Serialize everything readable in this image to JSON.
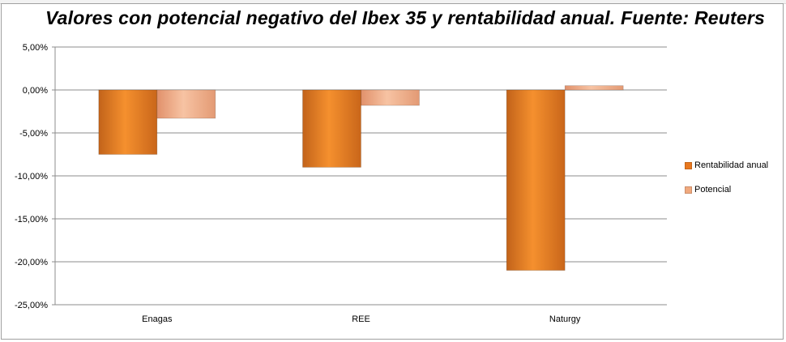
{
  "chart_data": {
    "type": "bar",
    "title": "Valores con potencial negativo del Ibex 35 y rentabilidad anual. Fuente: Reuters",
    "categories": [
      "Enagas",
      "REE",
      "Naturgy"
    ],
    "series": [
      {
        "name": "Rentabilidad anual",
        "values": [
          -7.5,
          -9.0,
          -21.0
        ],
        "color": "#e8781f"
      },
      {
        "name": "Potencial",
        "values": [
          -3.3,
          -1.8,
          0.5
        ],
        "color": "#f0a97e"
      }
    ],
    "ylim": [
      -25,
      5
    ],
    "yticks": [
      5,
      0,
      -5,
      -10,
      -15,
      -20,
      -25
    ],
    "ytick_labels": [
      "5,00%",
      "0,00%",
      "-5,00%",
      "-10,00%",
      "-15,00%",
      "-20,00%",
      "-25,00%"
    ],
    "xlabel": "",
    "ylabel": "",
    "grid": true,
    "legend_position": "right"
  }
}
